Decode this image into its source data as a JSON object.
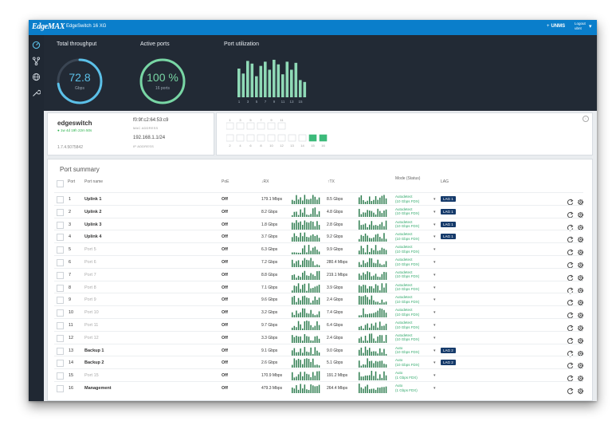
{
  "header": {
    "logo": "EdgeMAX",
    "device_title": "EdgeSwitch 16 XG",
    "unms_label": "UNMS",
    "unms_icon": "plus-icon",
    "user_line1": "Logout",
    "user_line2": "ubnt"
  },
  "sidebar": {
    "items": [
      {
        "icon": "dashboard-icon"
      },
      {
        "icon": "topology-icon"
      },
      {
        "icon": "globe-icon"
      },
      {
        "icon": "wrench-icon"
      }
    ]
  },
  "dashboard": {
    "throughput": {
      "title": "Total throughput",
      "value": "72.8",
      "unit": "Gbps",
      "level": 0.73,
      "color": "#5bc0e8"
    },
    "active_ports": {
      "title": "Active ports",
      "value": "100 %",
      "unit": "16 ports",
      "level": 1.0,
      "color": "#78d6a4"
    },
    "utilization": {
      "title": "Port utilization",
      "tick_labels": [
        "1",
        "3",
        "5",
        "7",
        "9",
        "11",
        "13",
        "15"
      ],
      "levels": [
        0.75,
        0.62,
        0.95,
        0.88,
        0.55,
        0.82,
        0.93,
        0.72,
        0.98,
        0.86,
        0.6,
        0.93,
        0.72,
        0.9,
        0.45,
        0.4
      ]
    }
  },
  "system": {
    "name": "edgeswitch",
    "uptime": "1w 4d 19h 22m 50s",
    "version": "1.7.4.5075842",
    "mac": "f0:9f:c2:64:53:c9",
    "mac_caption": "MAC ADDRESS",
    "ip": "192.168.1.1/24",
    "ip_caption": "IP ADDRESS"
  },
  "port_map": {
    "top_labels": [
      "1",
      "3",
      "5",
      "7",
      "9",
      "11"
    ],
    "bottom_labels": [
      "2",
      "4",
      "6",
      "8",
      "10",
      "12",
      "13",
      "14",
      "15",
      "16"
    ],
    "active_color": "#3cba7a"
  },
  "summary": {
    "title": "Port summary",
    "headers": {
      "port": "Port",
      "name": "Port name",
      "poe": "PoE",
      "rx": "↓RX",
      "tx": "↑TX",
      "mode": "Mode (Status)",
      "lag": "LAG"
    },
    "rows": [
      {
        "port": "1",
        "name": "Uplink 1",
        "named": true,
        "poe": "Off",
        "rx": "179.1 Mbps",
        "tx": "8.5 Gbps",
        "mode1": "Autodetect",
        "mode2": "(10 Gbps FDX)",
        "lag": "LAG 1"
      },
      {
        "port": "2",
        "name": "Uplink 2",
        "named": true,
        "poe": "Off",
        "rx": "8.2 Gbps",
        "tx": "4.8 Gbps",
        "mode1": "Autodetect",
        "mode2": "(10 Gbps FDX)",
        "lag": "LAG 1"
      },
      {
        "port": "3",
        "name": "Uplink 3",
        "named": true,
        "poe": "Off",
        "rx": "1.8 Gbps",
        "tx": "2.8 Gbps",
        "mode1": "Autodetect",
        "mode2": "(10 Gbps FDX)",
        "lag": "LAG 1"
      },
      {
        "port": "4",
        "name": "Uplink 4",
        "named": true,
        "poe": "Off",
        "rx": "3.7 Gbps",
        "tx": "9.2 Gbps",
        "mode1": "Autodetect",
        "mode2": "(10 Gbps FDX)",
        "lag": "LAG 1"
      },
      {
        "port": "5",
        "name": "Port 5",
        "named": false,
        "poe": "Off",
        "rx": "6.3 Gbps",
        "tx": "9.9 Gbps",
        "mode1": "Autodetect",
        "mode2": "(10 Gbps FDX)",
        "lag": ""
      },
      {
        "port": "6",
        "name": "Port 6",
        "named": false,
        "poe": "Off",
        "rx": "7.2 Gbps",
        "tx": "280.4 Mbps",
        "mode1": "Autodetect",
        "mode2": "(10 Gbps FDX)",
        "lag": ""
      },
      {
        "port": "7",
        "name": "Port 7",
        "named": false,
        "poe": "Off",
        "rx": "8.8 Gbps",
        "tx": "219.1 Mbps",
        "mode1": "Autodetect",
        "mode2": "(10 Gbps FDX)",
        "lag": ""
      },
      {
        "port": "8",
        "name": "Port 8",
        "named": false,
        "poe": "Off",
        "rx": "7.1 Gbps",
        "tx": "3.9 Gbps",
        "mode1": "Autodetect",
        "mode2": "(10 Gbps FDX)",
        "lag": ""
      },
      {
        "port": "9",
        "name": "Port 9",
        "named": false,
        "poe": "Off",
        "rx": "9.6 Gbps",
        "tx": "2.4 Gbps",
        "mode1": "Autodetect",
        "mode2": "(10 Gbps FDX)",
        "lag": ""
      },
      {
        "port": "10",
        "name": "Port 10",
        "named": false,
        "poe": "Off",
        "rx": "3.2 Gbps",
        "tx": "7.4 Gbps",
        "mode1": "Autodetect",
        "mode2": "(10 Gbps FDX)",
        "lag": ""
      },
      {
        "port": "11",
        "name": "Port 11",
        "named": false,
        "poe": "Off",
        "rx": "9.7 Gbps",
        "tx": "6.4 Gbps",
        "mode1": "Autodetect",
        "mode2": "(10 Gbps FDX)",
        "lag": ""
      },
      {
        "port": "12",
        "name": "Port 12",
        "named": false,
        "poe": "Off",
        "rx": "3.3 Gbps",
        "tx": "2.4 Gbps",
        "mode1": "Autodetect",
        "mode2": "(10 Gbps FDX)",
        "lag": ""
      },
      {
        "port": "13",
        "name": "Backup 1",
        "named": true,
        "poe": "Off",
        "rx": "9.1 Gbps",
        "tx": "9.0 Gbps",
        "mode1": "Auto",
        "mode2": "(10 Gbps FDX)",
        "lag": "LAG 2"
      },
      {
        "port": "14",
        "name": "Backup 2",
        "named": true,
        "poe": "Off",
        "rx": "2.6 Gbps",
        "tx": "5.1 Gbps",
        "mode1": "Auto",
        "mode2": "(10 Gbps FDX)",
        "lag": "LAG 2"
      },
      {
        "port": "15",
        "name": "Port 15",
        "named": false,
        "poe": "Off",
        "rx": "170.9 Mbps",
        "tx": "191.2 Mbps",
        "mode1": "Auto",
        "mode2": "(1 Gbps FDX)",
        "lag": ""
      },
      {
        "port": "16",
        "name": "Management",
        "named": true,
        "poe": "Off",
        "rx": "479.3 Mbps",
        "tx": "264.4 Mbps",
        "mode1": "Auto",
        "mode2": "(1 Gbps FDX)",
        "lag": ""
      }
    ],
    "row_actions": [
      "restart-icon",
      "gear-icon"
    ]
  },
  "colors": {
    "accent": "#0a7ecb",
    "dark_panel": "#222a35",
    "sidebar": "#202833",
    "green": "#3cba7a",
    "lag_badge": "#163b6b",
    "spark": "#2e7d4f"
  }
}
